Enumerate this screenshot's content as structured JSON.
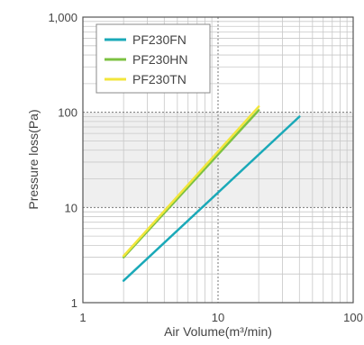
{
  "chart_data": {
    "type": "line",
    "xscale": "log",
    "yscale": "log",
    "xlim": [
      1,
      100
    ],
    "ylim": [
      1,
      1000
    ],
    "xlabel": "Air Volume(m³/min)",
    "ylabel": "Pressure loss(Pa)",
    "x_ticks": [
      "1",
      "10",
      "100"
    ],
    "y_ticks": [
      "1",
      "10",
      "100",
      "1,000"
    ],
    "grid": true,
    "shaded_band": {
      "y_from": 10,
      "y_to": 100,
      "color": "#efefef"
    },
    "legend_position": "top-left",
    "series": [
      {
        "name": "PF230FN",
        "color": "#1aa9b8",
        "points": [
          [
            2,
            1.7
          ],
          [
            40,
            90
          ]
        ]
      },
      {
        "name": "PF230HN",
        "color": "#7cc142",
        "points": [
          [
            2,
            3
          ],
          [
            20,
            105
          ]
        ]
      },
      {
        "name": "PF230TN",
        "color": "#f2e63c",
        "points": [
          [
            2,
            3.1
          ],
          [
            20,
            115
          ]
        ]
      }
    ]
  }
}
